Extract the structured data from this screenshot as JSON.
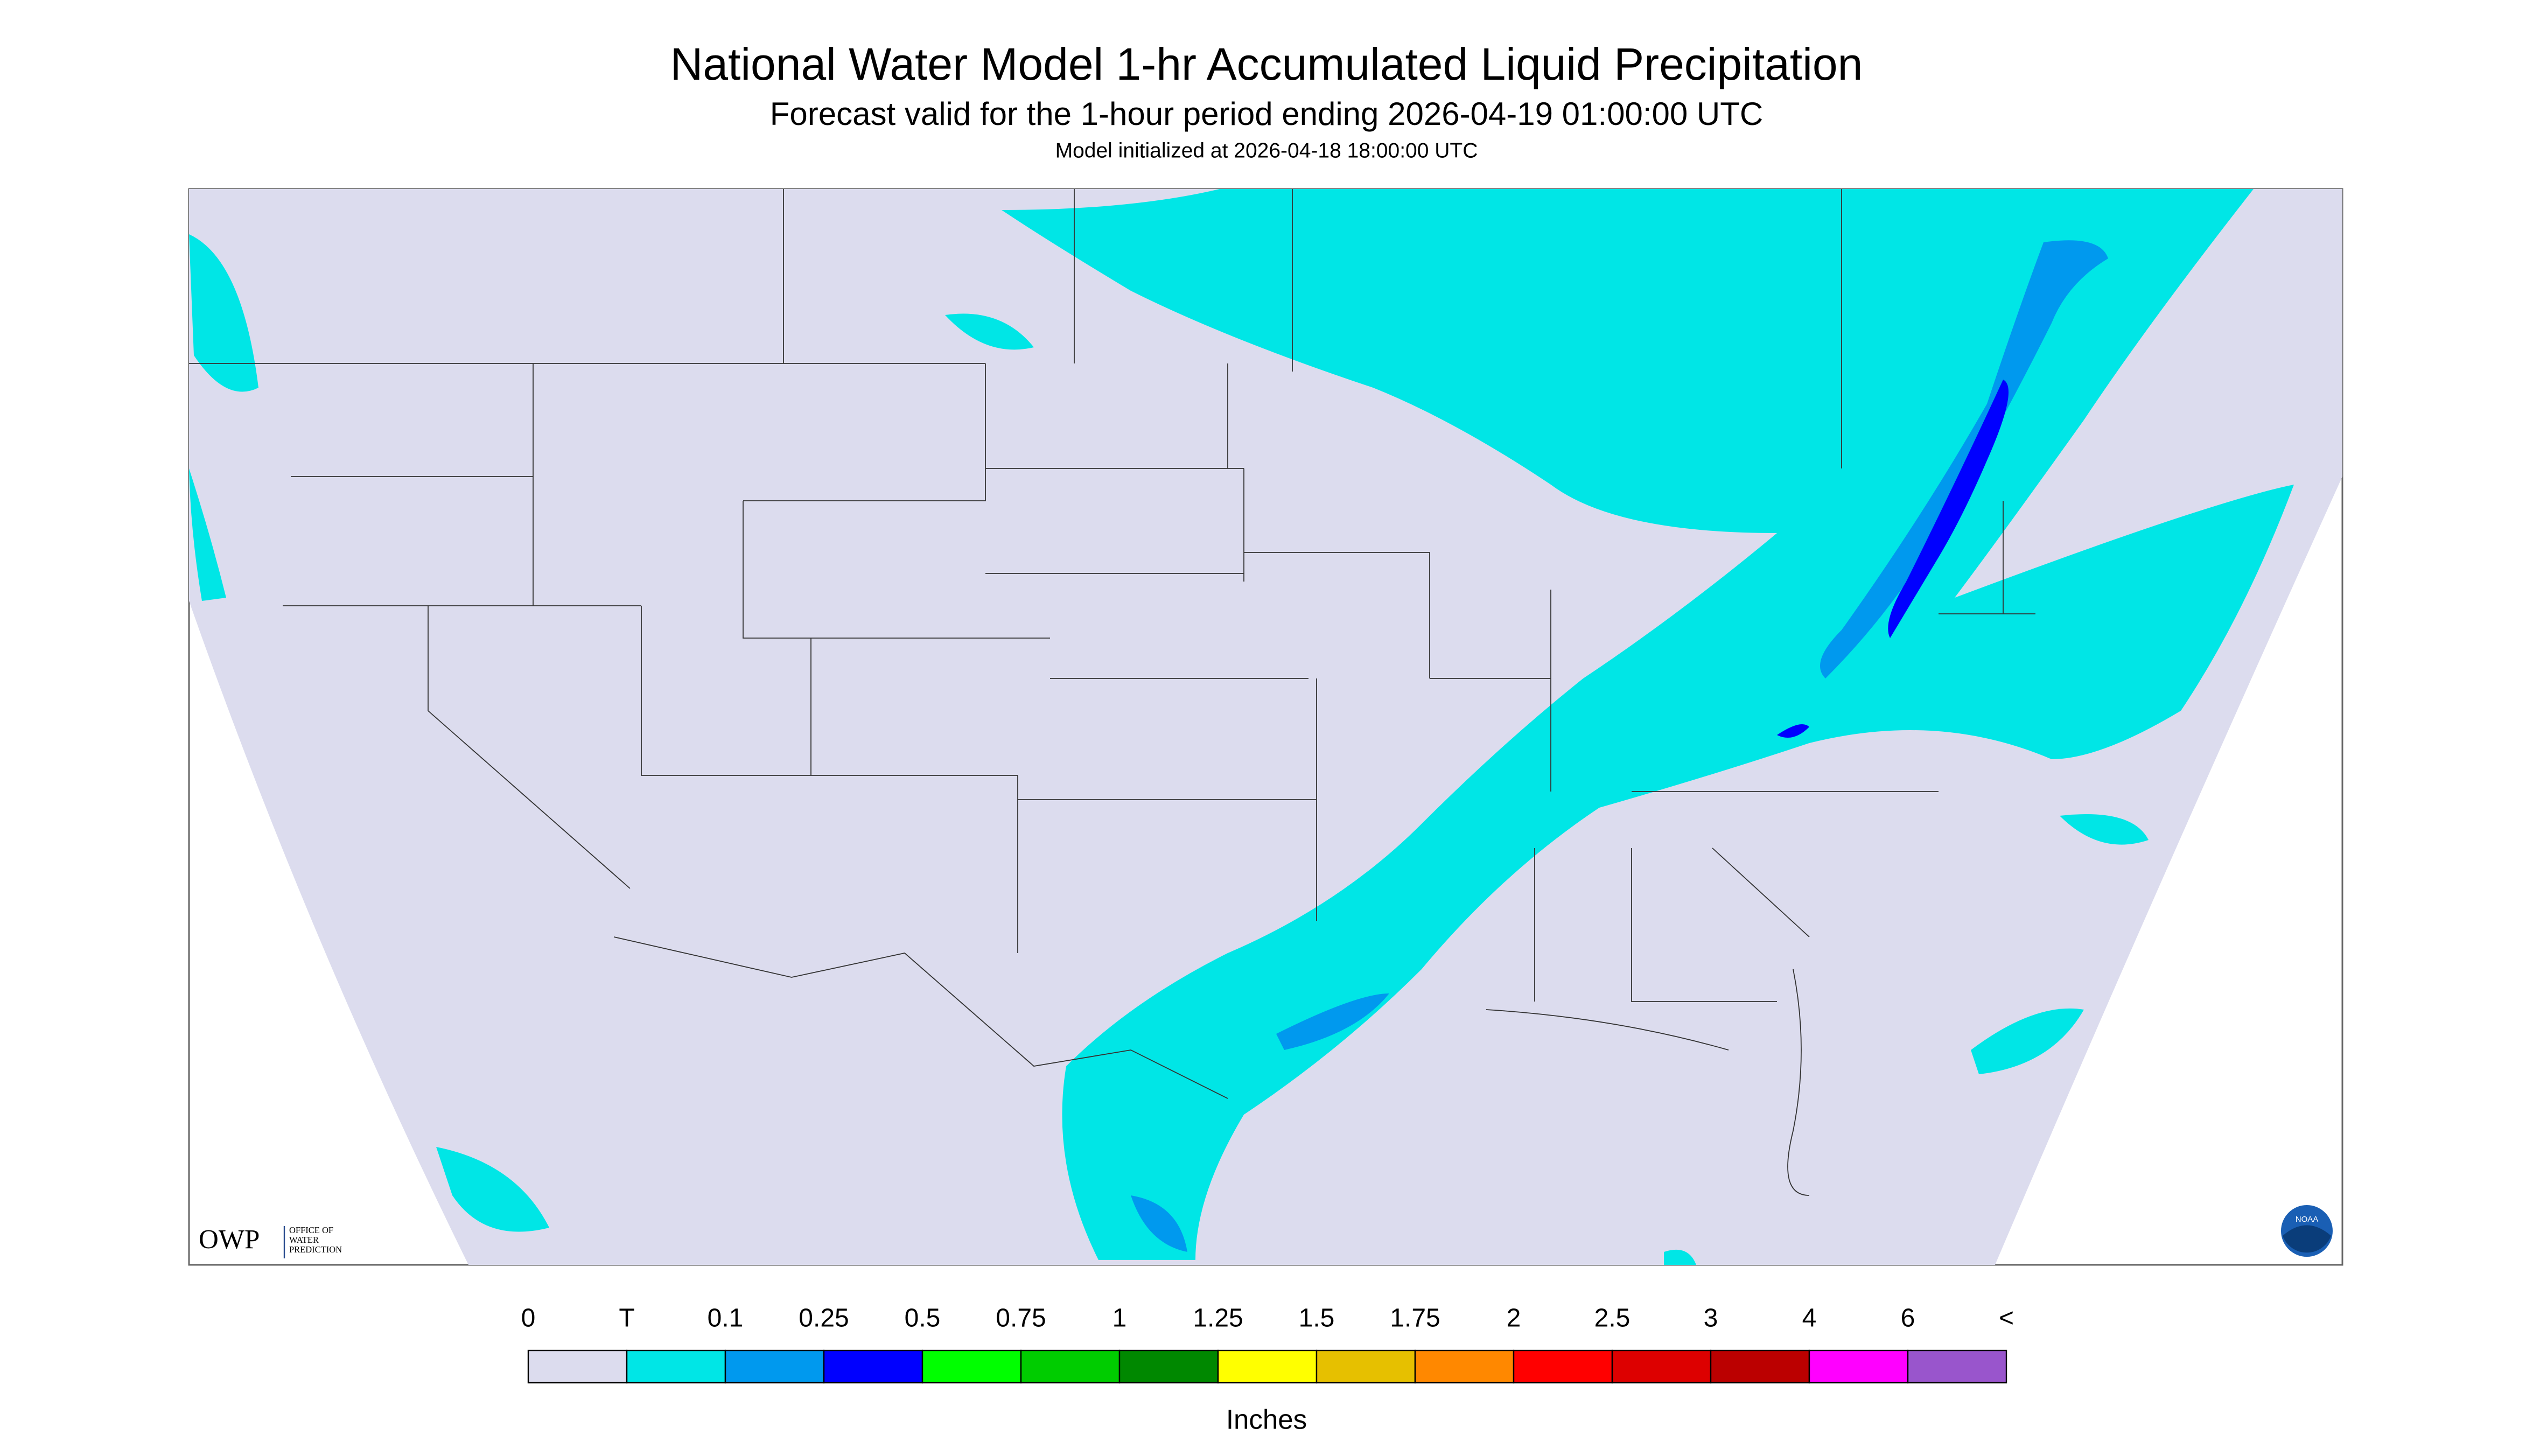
{
  "header": {
    "title": "National Water Model 1-hr Accumulated Liquid Precipitation",
    "subtitle": "Forecast valid for the 1-hour period ending 2026-04-19 01:00:00 UTC",
    "note": "Model initialized at 2026-04-18 18:00:00 UTC"
  },
  "logos": {
    "owp": "OWP",
    "owp_full": [
      "OFFICE OF",
      "WATER",
      "PREDICTION"
    ],
    "noaa": "NOAA"
  },
  "legend": {
    "labels": [
      "0",
      "T",
      "0.1",
      "0.25",
      "0.5",
      "0.75",
      "1",
      "1.25",
      "1.5",
      "1.75",
      "2",
      "2.5",
      "3",
      "4",
      "6",
      "<"
    ],
    "colors": [
      "#dcdcee",
      "#00e6e6",
      "#0099ee",
      "#0000ff",
      "#00ff00",
      "#00cc00",
      "#008800",
      "#ffff00",
      "#e6c000",
      "#ff8800",
      "#ff0000",
      "#dd0000",
      "#bb0000",
      "#ff00ff",
      "#9955cc"
    ],
    "unit": "Inches"
  }
}
